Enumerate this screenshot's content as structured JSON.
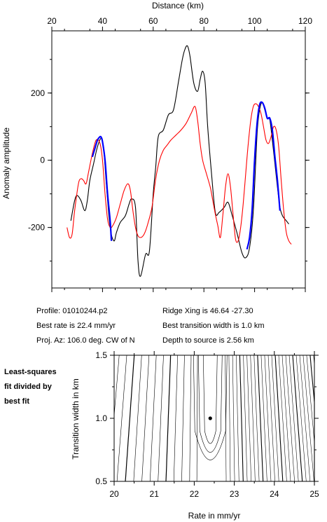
{
  "chart_data": [
    {
      "type": "line",
      "xlabel": "Distance (km)",
      "ylabel": "Anomaly amplitude",
      "xlim": [
        20,
        120
      ],
      "ylim": [
        -380,
        385
      ],
      "x_ticks": [
        20,
        40,
        60,
        80,
        100,
        120
      ],
      "y_ticks": [
        -200,
        0,
        200
      ],
      "grid": false,
      "series": [
        {
          "color": "#000000",
          "x": [
            27.5,
            29,
            30,
            31.5,
            33,
            34,
            35,
            36.5,
            38,
            39.5,
            40.5,
            41.5,
            43,
            44.5,
            45.5,
            47,
            49,
            50.5,
            51.5,
            53,
            54,
            55,
            57,
            58.5,
            60,
            61,
            62,
            64,
            66,
            68,
            70,
            71.5,
            72.5,
            73.5,
            74.5,
            76,
            77.5,
            78.5,
            79.5,
            80.5,
            81.5,
            83,
            84.5,
            86,
            88,
            89.5,
            91,
            93,
            95,
            96.5,
            98,
            99.5,
            101,
            102,
            103,
            104,
            105,
            106,
            107,
            108,
            109,
            110,
            111,
            112.5,
            113.5
          ],
          "y": [
            -180,
            -120,
            -105,
            -120,
            -150,
            -120,
            -60,
            -10,
            40,
            65,
            30,
            -70,
            -200,
            -240,
            -215,
            -185,
            -165,
            -130,
            -115,
            -140,
            -300,
            -345,
            -280,
            -270,
            -100,
            -20,
            70,
            90,
            135,
            150,
            235,
            300,
            330,
            340,
            310,
            230,
            205,
            240,
            265,
            230,
            100,
            -40,
            -155,
            -155,
            -140,
            -125,
            -160,
            -215,
            -275,
            -290,
            -260,
            -150,
            80,
            150,
            172,
            150,
            125,
            120,
            60,
            -10,
            -80,
            -140,
            -165,
            -180,
            -190
          ],
          "values_note": ""
        },
        {
          "color": "#ff0000",
          "x": [
            26,
            27,
            28,
            29,
            30.5,
            31.5,
            32.5,
            33.5,
            34.5,
            36,
            37.5,
            39,
            40,
            41,
            42,
            43,
            44,
            45.5,
            47,
            48.5,
            50,
            51,
            52,
            53,
            54,
            55,
            56,
            57,
            58,
            59.5,
            61,
            62.5,
            64,
            65.5,
            67,
            69,
            71,
            73,
            75,
            76.5,
            77.5,
            78.5,
            79.5,
            81,
            82.5,
            83.5,
            84.5,
            85.5,
            86.5,
            87.5,
            88.5,
            89.5,
            90.5,
            91.5,
            92.5,
            93.5,
            94.5,
            95.5,
            96.5,
            97.5,
            98.5,
            99.5,
            100.5,
            101.5,
            102.5,
            103.5,
            104.5,
            105.5,
            106.5,
            107.5,
            108.5,
            109.5,
            110.5,
            111.5,
            112.5,
            113.5,
            114.5
          ],
          "y": [
            -200,
            -230,
            -220,
            -150,
            -70,
            -55,
            -60,
            -70,
            -35,
            20,
            60,
            50,
            0,
            -100,
            -175,
            -200,
            -195,
            -170,
            -130,
            -90,
            -70,
            -90,
            -150,
            -200,
            -225,
            -230,
            -225,
            -210,
            -185,
            -140,
            -55,
            0,
            30,
            45,
            60,
            75,
            90,
            110,
            140,
            160,
            120,
            50,
            0,
            -40,
            -80,
            -120,
            -160,
            -195,
            -230,
            -160,
            -80,
            -40,
            -80,
            -160,
            -235,
            -240,
            -200,
            -130,
            -40,
            50,
            120,
            160,
            168,
            160,
            140,
            100,
            60,
            50,
            70,
            100,
            90,
            40,
            -60,
            -150,
            -215,
            -240,
            -250
          ]
        },
        {
          "color": "#0000ff",
          "x": [
            36,
            37,
            38,
            39,
            39.5,
            40,
            41,
            42,
            43,
            43.5
          ],
          "y": [
            10,
            35,
            60,
            70,
            68,
            55,
            0,
            -100,
            -180,
            -240
          ],
          "x2": [
            97,
            98,
            99,
            100,
            101,
            102,
            103,
            104,
            105,
            106,
            107,
            108,
            109,
            110
          ],
          "y2": [
            -265,
            -230,
            -150,
            0,
            110,
            165,
            172,
            155,
            125,
            125,
            90,
            10,
            -60,
            -150
          ]
        }
      ]
    },
    {
      "type": "heatmap",
      "xlabel": "Rate in mm/yr",
      "ylabel": "Transition width in km",
      "xlim": [
        20,
        25
      ],
      "ylim": [
        0.5,
        1.5
      ],
      "x_ticks": [
        "20",
        "21",
        "22",
        "23",
        "24",
        "25"
      ],
      "y_ticks": [
        "0.5",
        "1.0",
        "1.5"
      ],
      "best_fit": {
        "rate": 22.4,
        "width": 1.0
      },
      "contour_style": "isolines"
    }
  ],
  "info": {
    "profile": "Profile: 01010244.p2",
    "best_rate": "Best rate is 22.4 mm/yr",
    "proj_az": "Proj. Az: 106.0 deg. CW of N",
    "ridge_xing": "Ridge Xing is 46.64 -27.30",
    "transition": "Best transition width is 1.0 km",
    "depth": "Depth to source is   2.56 km"
  },
  "side_label": [
    "Least-squares",
    "fit divided by",
    "best fit"
  ]
}
